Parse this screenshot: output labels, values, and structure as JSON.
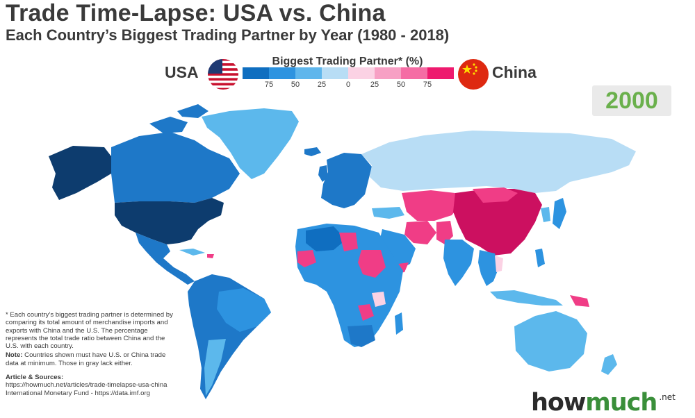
{
  "title": "Trade Time-Lapse: USA vs. China",
  "subtitle": "Each Country’s Biggest Trading Partner by Year (1980 - 2018)",
  "legend": {
    "title": "Biggest Trading Partner* (%)",
    "left_label": "USA",
    "right_label": "China",
    "ticks": [
      "75",
      "50",
      "25",
      "0",
      "25",
      "50",
      "75"
    ],
    "colors": [
      "#0f6ec0",
      "#2d93e0",
      "#5fb6ec",
      "#b8ddf5",
      "#fbd2e4",
      "#f7a0c4",
      "#f56ca4",
      "#ee1a6e"
    ]
  },
  "year": "2000",
  "notes": {
    "asterisk_note": "* Each country’s biggest trading partner is determined by comparing its total amount of merchandise imports and exports with China and the U.S. The percentage represents the total trade ratio between China and the U.S. with each country.",
    "note_label": "Note:",
    "note_text": " Countries shown must have U.S. or China trade data at minimum. Those in gray lack either.",
    "sources_label": "Article & Sources:",
    "source_1": "https://howmuch.net/articles/trade-timelapse-usa-china",
    "source_2": "International Monetary Fund - https://data.imf.org"
  },
  "logo": {
    "part1": "how",
    "part2": "much",
    "tld": ".net"
  },
  "colors": {
    "usa_dark": "#0d3c6e",
    "usa_mid": "#1e78c8",
    "usa_light": "#5cb8ec",
    "neutral_light": "#b8ddf5",
    "china_pink": "#f03d86",
    "china_dark": "#cc1060",
    "gray": "#c8c8c8",
    "year_green": "#6ab04c"
  }
}
